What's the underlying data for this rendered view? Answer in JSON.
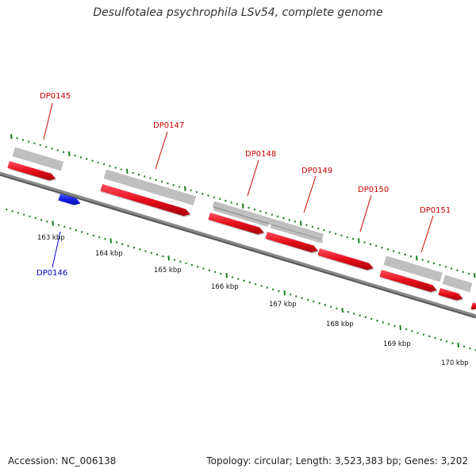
{
  "title": "Desulfotalea psychrophila LSv54, complete genome",
  "footer": {
    "accession": "Accession: NC_006138",
    "summary": "Topology: circular; Length: 3,523,383 bp; Genes: 3,202"
  },
  "colors": {
    "backbone": "#8a8a8a",
    "gene_label_top": "#cc0000",
    "gene_label_bottom": "#0000cc",
    "cds_red": "#e8101a",
    "tick_green": "#1a7a1a"
  },
  "ruler": {
    "labels": [
      "163 kbp",
      "164 kbp",
      "165 kbp",
      "166 kbp",
      "167 kbp",
      "168 kbp",
      "169 kbp",
      "170 kbp"
    ]
  },
  "genes": [
    {
      "id": "DP0145",
      "strand": "forward",
      "label_color": "#cc0000"
    },
    {
      "id": "DP0146",
      "strand": "reverse",
      "label_color": "#0000cc"
    },
    {
      "id": "DP0147",
      "strand": "forward",
      "label_color": "#cc0000"
    },
    {
      "id": "DP0148",
      "strand": "forward",
      "label_color": "#cc0000"
    },
    {
      "id": "DP0149",
      "strand": "forward",
      "label_color": "#cc0000"
    },
    {
      "id": "DP0150",
      "strand": "forward",
      "label_color": "#cc0000"
    },
    {
      "id": "DP0151",
      "strand": "forward",
      "label_color": "#cc0000"
    }
  ]
}
